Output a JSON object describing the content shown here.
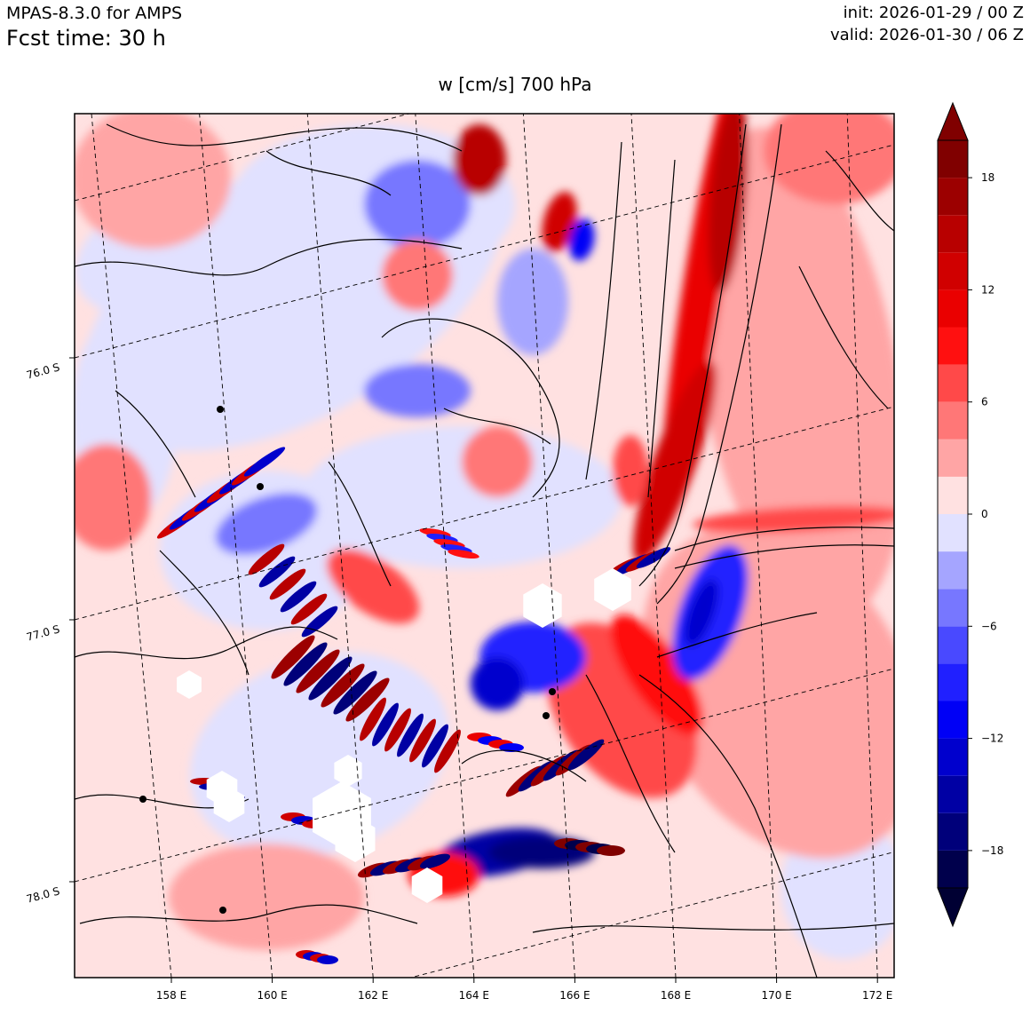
{
  "header": {
    "model": "MPAS-8.3.0 for AMPS",
    "forecast_time": "Fcst time:   30 h",
    "init": "init: 2026-01-29 / 00 Z",
    "valid": "valid: 2026-01-30 / 06 Z"
  },
  "plot_title": "w [cm/s]    700 hPa",
  "chart_data": {
    "type": "heatmap",
    "title": "w [cm/s]    700 hPa",
    "variable": "vertical velocity w",
    "units": "cm/s",
    "level": "700 hPa",
    "lon_ticks": [
      "158 E",
      "160 E",
      "162 E",
      "164 E",
      "166 E",
      "168 E",
      "170 E",
      "172 E"
    ],
    "lon_values": [
      158,
      160,
      162,
      164,
      166,
      168,
      170,
      172
    ],
    "lat_ticks": [
      "76.0 S",
      "77.0 S",
      "78.0 S"
    ],
    "lat_values": [
      -76.0,
      -77.0,
      -78.0
    ],
    "colorbar": {
      "levels": [
        -20,
        -18,
        -16,
        -14,
        -12,
        -10,
        -8,
        -6,
        -4,
        -2,
        0,
        2,
        4,
        6,
        8,
        10,
        12,
        14,
        16,
        18,
        20
      ],
      "tick_values": [
        -18,
        -12,
        -6,
        0,
        6,
        12,
        18
      ],
      "tick_labels": [
        "−18",
        "−12",
        "−6",
        "0",
        "6",
        "12",
        "18"
      ],
      "colors": [
        "#00004c",
        "#00007a",
        "#0000a4",
        "#0000cd",
        "#0000f6",
        "#2020ff",
        "#4949ff",
        "#7777ff",
        "#a5a5ff",
        "#e1e1ff",
        "#ffe1e1",
        "#ffa5a5",
        "#ff7777",
        "#ff4949",
        "#ff1010",
        "#ea0000",
        "#d00000",
        "#b80000",
        "#9c0000",
        "#800000"
      ],
      "extend": "both",
      "under_color": "#000033",
      "over_color": "#800000"
    },
    "features": [
      {
        "name": "strong ascent band",
        "lon": 168.5,
        "lat": -76.3,
        "sign": "positive",
        "w": 14
      },
      {
        "name": "strong descent lobe",
        "lon": 169.0,
        "lat": -77.0,
        "sign": "negative",
        "w": -12
      },
      {
        "name": "mountain wave train",
        "lon": 161.5,
        "lat": -77.2,
        "sign": "mixed",
        "w": 18
      },
      {
        "name": "coastal wave pair",
        "lon": 166.0,
        "lat": -77.9,
        "sign": "mixed",
        "w": -18
      },
      {
        "name": "weak ascent band",
        "lon": 170.5,
        "lat": -77.5,
        "sign": "positive",
        "w": 4
      }
    ]
  }
}
